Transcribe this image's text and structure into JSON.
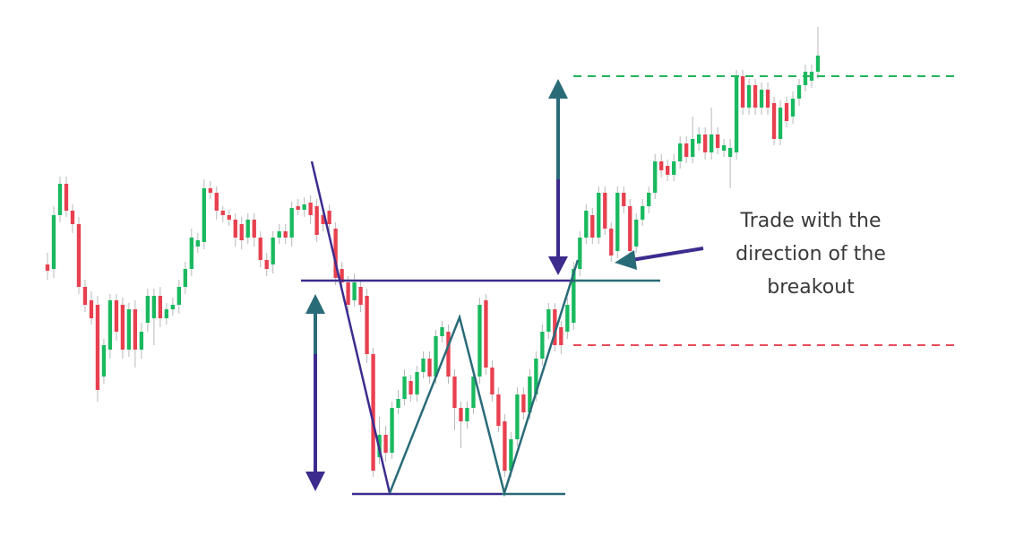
{
  "chart_data": {
    "type": "candlestick",
    "annotation": [
      "Trade with the",
      "direction of the",
      "breakout"
    ],
    "up_color": "#19b95f",
    "down_color": "#e8404f",
    "ylim": [
      0,
      600
    ],
    "open": [
      305,
      300,
      360,
      395,
      365,
      350,
      280,
      265,
      260,
      180,
      210,
      265,
      260,
      210,
      255,
      210,
      240,
      245,
      270,
      245,
      255,
      260,
      280,
      300,
      325,
      330,
      390,
      385,
      365,
      360,
      355,
      350,
      335,
      355,
      335,
      310,
      305,
      335,
      342,
      335,
      370,
      366,
      374,
      370,
      360,
      365,
      345,
      300,
      285,
      265,
      280,
      270,
      205,
      90,
      115,
      95,
      145,
      155,
      175,
      160,
      185,
      200,
      180,
      225,
      230,
      180,
      145,
      130,
      145,
      180,
      265,
      190,
      160,
      130,
      75,
      110,
      160,
      140,
      160,
      200,
      230,
      255,
      235,
      230,
      240,
      300,
      335,
      360,
      335,
      385,
      345,
      320,
      385,
      370,
      325,
      355,
      370,
      385,
      420,
      415,
      405,
      420,
      440,
      425,
      440,
      450,
      430,
      450,
      432,
      425,
      430,
      515,
      480,
      505,
      480,
      500,
      485,
      445,
      485,
      470,
      490,
      505,
      510,
      520
    ],
    "high": [
      318,
      370,
      403,
      403,
      372,
      358,
      288,
      275,
      270,
      222,
      272,
      272,
      268,
      262,
      265,
      240,
      278,
      278,
      280,
      262,
      268,
      288,
      308,
      345,
      340,
      400,
      398,
      392,
      370,
      366,
      362,
      358,
      362,
      362,
      342,
      318,
      342,
      350,
      350,
      375,
      378,
      380,
      382,
      378,
      368,
      372,
      352,
      308,
      292,
      295,
      288,
      278,
      212,
      135,
      125,
      152,
      165,
      188,
      182,
      192,
      208,
      208,
      232,
      242,
      238,
      188,
      152,
      152,
      188,
      268,
      272,
      198,
      168,
      138,
      118,
      168,
      168,
      188,
      208,
      238,
      262,
      262,
      242,
      268,
      308,
      342,
      372,
      368,
      392,
      392,
      352,
      392,
      392,
      378,
      362,
      378,
      392,
      428,
      428,
      422,
      428,
      448,
      448,
      470,
      458,
      458,
      480,
      458,
      445,
      445,
      522,
      522,
      512,
      512,
      508,
      508,
      492,
      488,
      492,
      498,
      512,
      528,
      528,
      570
    ],
    "low": [
      288,
      290,
      352,
      358,
      340,
      272,
      252,
      238,
      152,
      172,
      200,
      220,
      200,
      202,
      190,
      200,
      230,
      215,
      235,
      238,
      248,
      250,
      272,
      292,
      318,
      322,
      378,
      355,
      352,
      348,
      325,
      322,
      328,
      325,
      302,
      292,
      295,
      328,
      328,
      325,
      360,
      358,
      350,
      330,
      342,
      342,
      282,
      278,
      252,
      258,
      252,
      195,
      68,
      82,
      85,
      88,
      138,
      148,
      152,
      152,
      178,
      172,
      172,
      218,
      172,
      120,
      100,
      122,
      138,
      172,
      182,
      152,
      118,
      68,
      68,
      102,
      132,
      132,
      152,
      192,
      222,
      208,
      205,
      222,
      232,
      292,
      328,
      328,
      328,
      338,
      308,
      312,
      362,
      312,
      318,
      348,
      362,
      378,
      402,
      398,
      398,
      412,
      418,
      418,
      432,
      422,
      422,
      428,
      425,
      390,
      422,
      472,
      472,
      472,
      472,
      472,
      438,
      438,
      458,
      462,
      482,
      498,
      502,
      512
    ],
    "close": [
      298,
      360,
      395,
      365,
      350,
      280,
      260,
      245,
      165,
      215,
      265,
      230,
      210,
      255,
      210,
      230,
      270,
      270,
      245,
      255,
      260,
      280,
      300,
      335,
      332,
      390,
      385,
      365,
      360,
      355,
      335,
      332,
      355,
      335,
      310,
      300,
      335,
      342,
      335,
      368,
      366,
      372,
      360,
      338,
      350,
      350,
      290,
      285,
      260,
      285,
      260,
      205,
      75,
      115,
      95,
      145,
      155,
      180,
      160,
      185,
      200,
      180,
      225,
      235,
      180,
      145,
      130,
      145,
      180,
      260,
      190,
      160,
      125,
      75,
      110,
      160,
      140,
      180,
      200,
      230,
      255,
      215,
      215,
      260,
      300,
      335,
      365,
      335,
      385,
      345,
      315,
      385,
      370,
      320,
      355,
      370,
      385,
      420,
      410,
      405,
      420,
      440,
      425,
      445,
      450,
      430,
      450,
      435,
      438,
      435,
      515,
      480,
      505,
      480,
      500,
      480,
      445,
      480,
      465,
      490,
      505,
      520,
      520,
      538
    ]
  }
}
